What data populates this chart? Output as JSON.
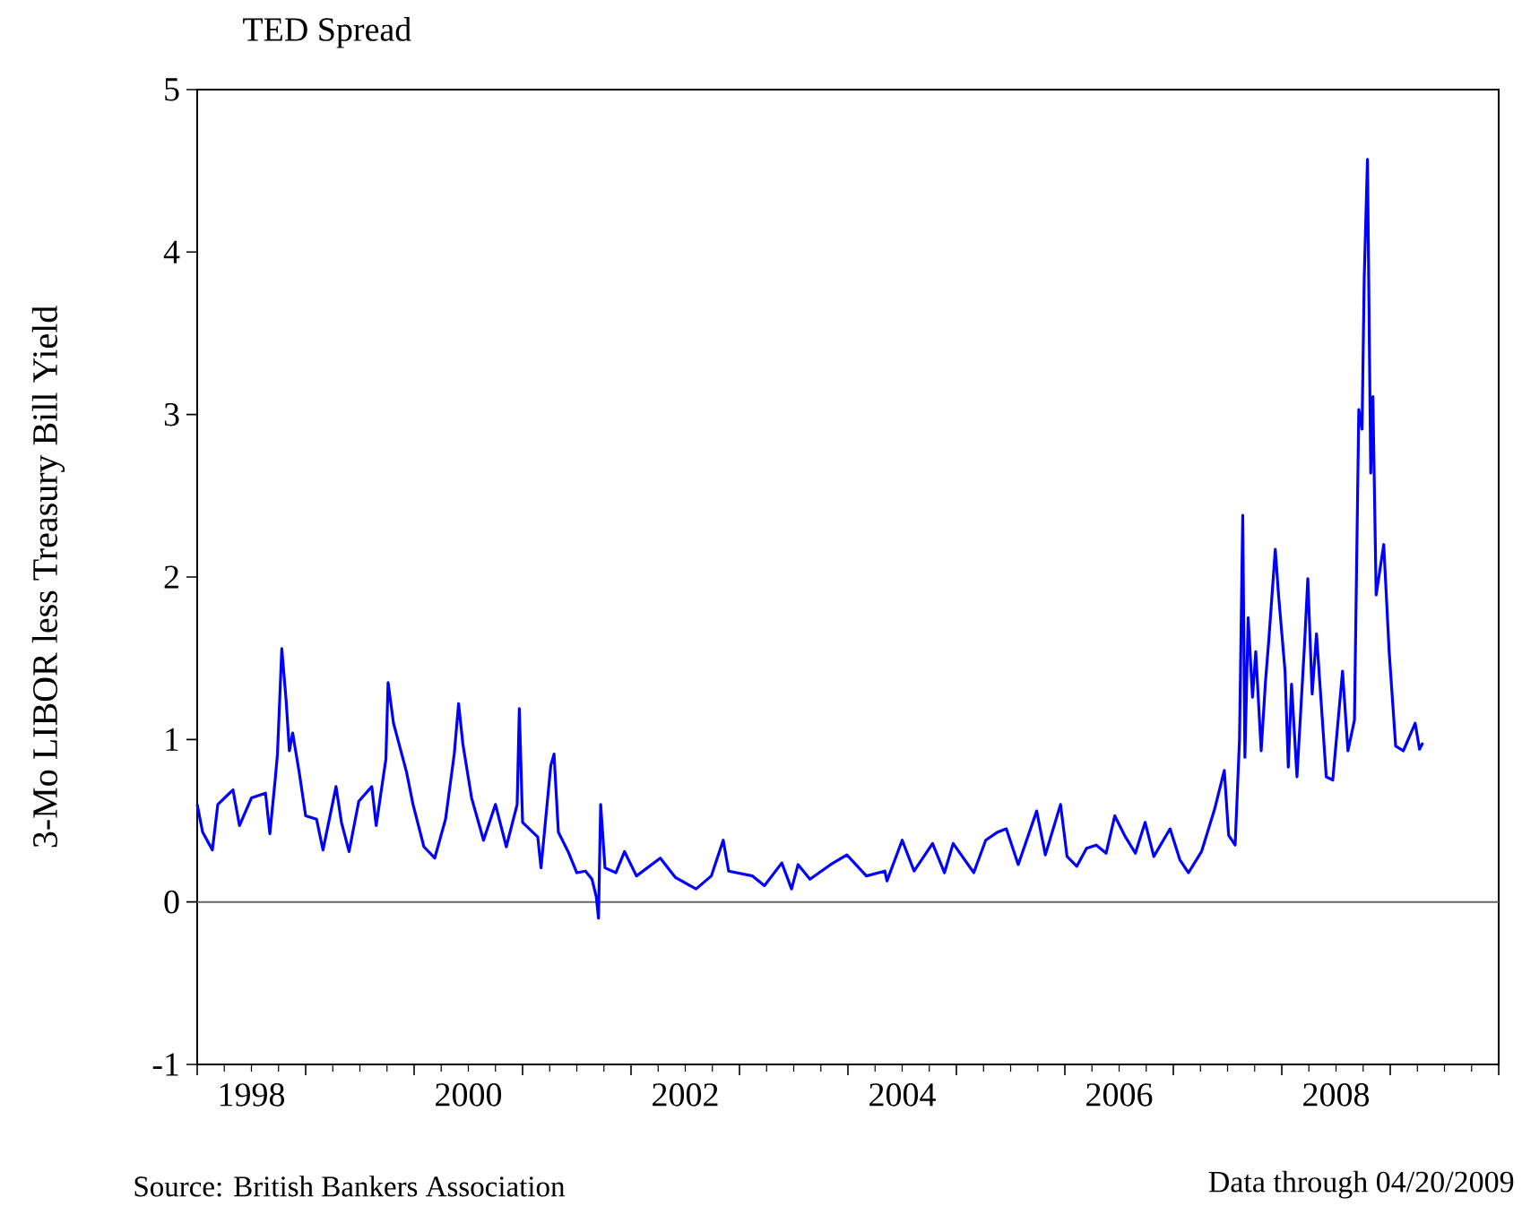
{
  "chart_data": {
    "type": "line",
    "title": "TED Spread",
    "ylabel": "3-Mo LIBOR less Treasury Bill Yield",
    "annotations": [
      "Source: British Bankers Association",
      "Data through 04/20/2009"
    ],
    "xlim": [
      1998,
      2010
    ],
    "ylim": [
      -1,
      5
    ],
    "yticks": [
      -1,
      0,
      1,
      2,
      3,
      4,
      5
    ],
    "xticks": [
      {
        "value": 1998,
        "label": null
      },
      {
        "value": 1998.5,
        "label": "1998"
      },
      {
        "value": 1999,
        "label": null
      },
      {
        "value": 2000,
        "label": null
      },
      {
        "value": 2000.5,
        "label": "2000"
      },
      {
        "value": 2001,
        "label": null
      },
      {
        "value": 2002,
        "label": null
      },
      {
        "value": 2002.5,
        "label": "2002"
      },
      {
        "value": 2003,
        "label": null
      },
      {
        "value": 2004,
        "label": null
      },
      {
        "value": 2004.5,
        "label": "2004"
      },
      {
        "value": 2005,
        "label": null
      },
      {
        "value": 2006,
        "label": null
      },
      {
        "value": 2006.5,
        "label": "2006"
      },
      {
        "value": 2007,
        "label": null
      },
      {
        "value": 2008,
        "label": null
      },
      {
        "value": 2008.5,
        "label": "2008"
      },
      {
        "value": 2009,
        "label": null
      },
      {
        "value": 2010,
        "label": null
      }
    ],
    "grid": false,
    "marker": "none",
    "line_style": "solid",
    "ref_lines": [
      {
        "axis": "y",
        "value": 0,
        "color": "#666666"
      }
    ],
    "series": [
      {
        "color": "#0000ff",
        "x": [
          1998.0,
          1998.05,
          1998.14,
          1998.19,
          1998.33,
          1998.39,
          1998.5,
          1998.63,
          1998.67,
          1998.72,
          1998.74,
          1998.78,
          1998.82,
          1998.85,
          1998.88,
          1998.94,
          1999.0,
          1999.1,
          1999.16,
          1999.28,
          1999.33,
          1999.4,
          1999.49,
          1999.61,
          1999.65,
          1999.74,
          1999.76,
          1999.81,
          1999.93,
          1999.99,
          2000.09,
          2000.19,
          2000.29,
          2000.37,
          2000.41,
          2000.45,
          2000.53,
          2000.64,
          2000.75,
          2000.85,
          2000.95,
          2000.97,
          2001.0,
          2001.14,
          2001.17,
          2001.26,
          2001.29,
          2001.33,
          2001.42,
          2001.5,
          2001.58,
          2001.64,
          2001.68,
          2001.7,
          2001.72,
          2001.76,
          2001.86,
          2001.94,
          2002.05,
          2002.27,
          2002.41,
          2002.6,
          2002.74,
          2002.85,
          2002.9,
          2003.12,
          2003.23,
          2003.39,
          2003.48,
          2003.54,
          2003.65,
          2003.84,
          2003.99,
          2004.17,
          2004.34,
          2004.36,
          2004.5,
          2004.61,
          2004.78,
          2004.89,
          2004.97,
          2005.16,
          2005.27,
          2005.38,
          2005.46,
          2005.57,
          2005.74,
          2005.82,
          2005.96,
          2006.02,
          2006.11,
          2006.2,
          2006.29,
          2006.38,
          2006.46,
          2006.55,
          2006.65,
          2006.74,
          2006.82,
          2006.97,
          2007.06,
          2007.14,
          2007.26,
          2007.38,
          2007.47,
          2007.51,
          2007.57,
          2007.61,
          2007.64,
          2007.66,
          2007.69,
          2007.73,
          2007.76,
          2007.81,
          2007.85,
          2007.88,
          2007.94,
          2007.97,
          2008.03,
          2008.06,
          2008.09,
          2008.14,
          2008.21,
          2008.24,
          2008.28,
          2008.32,
          2008.41,
          2008.47,
          2008.56,
          2008.61,
          2008.67,
          2008.71,
          2008.74,
          2008.76,
          2008.79,
          2008.82,
          2008.84,
          2008.87,
          2008.94,
          2008.99,
          2009.05,
          2009.12,
          2009.23,
          2009.27,
          2009.3
        ],
        "values": [
          0.6,
          0.43,
          0.32,
          0.6,
          0.69,
          0.47,
          0.64,
          0.67,
          0.42,
          0.76,
          0.91,
          1.56,
          1.24,
          0.93,
          1.04,
          0.8,
          0.53,
          0.51,
          0.32,
          0.71,
          0.49,
          0.31,
          0.62,
          0.71,
          0.47,
          0.88,
          1.35,
          1.1,
          0.8,
          0.6,
          0.34,
          0.27,
          0.51,
          0.91,
          1.22,
          0.97,
          0.64,
          0.38,
          0.6,
          0.34,
          0.6,
          1.19,
          0.49,
          0.4,
          0.21,
          0.84,
          0.91,
          0.43,
          0.31,
          0.18,
          0.19,
          0.14,
          0.03,
          -0.1,
          0.6,
          0.21,
          0.18,
          0.31,
          0.16,
          0.27,
          0.15,
          0.08,
          0.16,
          0.38,
          0.19,
          0.16,
          0.1,
          0.24,
          0.08,
          0.23,
          0.14,
          0.23,
          0.29,
          0.16,
          0.19,
          0.13,
          0.38,
          0.19,
          0.36,
          0.18,
          0.36,
          0.18,
          0.38,
          0.43,
          0.45,
          0.23,
          0.56,
          0.29,
          0.6,
          0.28,
          0.22,
          0.33,
          0.35,
          0.3,
          0.53,
          0.41,
          0.3,
          0.49,
          0.28,
          0.45,
          0.26,
          0.18,
          0.31,
          0.57,
          0.81,
          0.41,
          0.35,
          1.0,
          2.38,
          0.89,
          1.75,
          1.26,
          1.54,
          0.93,
          1.36,
          1.61,
          2.17,
          1.89,
          1.42,
          0.83,
          1.34,
          0.77,
          1.59,
          1.99,
          1.28,
          1.65,
          0.77,
          0.75,
          1.42,
          0.93,
          1.12,
          3.03,
          2.91,
          3.84,
          4.57,
          2.64,
          3.11,
          1.89,
          2.2,
          1.54,
          0.96,
          0.93,
          1.1,
          0.94,
          0.98
        ]
      }
    ]
  }
}
